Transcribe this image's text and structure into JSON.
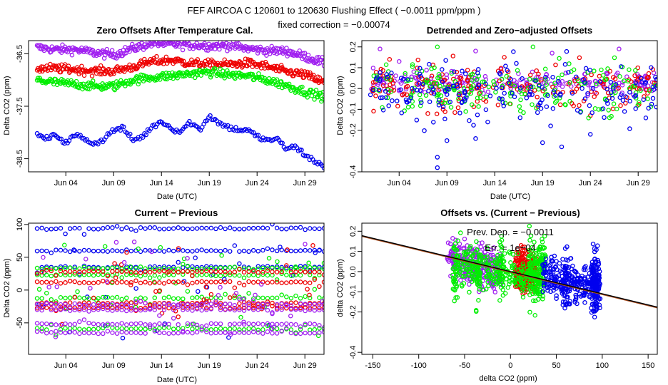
{
  "figure": {
    "title": "FEF   AIRCOA C   120601 to 120630   Flushing Effect ( −0.0011 ppm/ppm )",
    "subtitle": "fixed correction = −0.00074"
  },
  "colors": {
    "blue": "#0000ee",
    "green": "#00ee00",
    "red": "#ee0000",
    "purple": "#a020f0",
    "fit": "#000000",
    "fit_under": "#b05020"
  },
  "chart_data": [
    {
      "id": "zero-offsets",
      "type": "scatter",
      "title": "Zero Offsets After Temperature Cal.",
      "xlabel": "Date (UTC)",
      "ylabel": "Delta CO2 (ppm)",
      "xlim": [
        0.1,
        31.0
      ],
      "ylim": [
        -38.75,
        -36.25
      ],
      "xticks": [
        4,
        9,
        14,
        19,
        24,
        29
      ],
      "xtick_labels": [
        "Jun 04",
        "Jun 09",
        "Jun 14",
        "Jun 19",
        "Jun 24",
        "Jun 29"
      ],
      "yticks": [
        -36.5,
        -37.5,
        -38.5
      ],
      "ytick_labels": [
        "-36.5",
        "-37.5",
        "-38.5"
      ],
      "series": [
        {
          "name": "purple",
          "color": "purple",
          "x": [
            1,
            3,
            5,
            7,
            9,
            11,
            13,
            15,
            17,
            19,
            21,
            23,
            25,
            27,
            29,
            31
          ],
          "y": [
            -36.38,
            -36.42,
            -36.42,
            -36.48,
            -36.52,
            -36.4,
            -36.3,
            -36.32,
            -36.33,
            -36.35,
            -36.34,
            -36.4,
            -36.44,
            -36.45,
            -36.55,
            -36.68
          ]
        },
        {
          "name": "red",
          "color": "red",
          "x": [
            1,
            3,
            5,
            7,
            9,
            11,
            13,
            15,
            17,
            19,
            21,
            23,
            25,
            27,
            29,
            31
          ],
          "y": [
            -36.78,
            -36.78,
            -36.8,
            -36.83,
            -36.83,
            -36.75,
            -36.65,
            -36.62,
            -36.68,
            -36.7,
            -36.7,
            -36.68,
            -36.74,
            -36.84,
            -36.9,
            -37.05
          ]
        },
        {
          "name": "green",
          "color": "green",
          "x": [
            1,
            3,
            5,
            7,
            9,
            11,
            13,
            15,
            17,
            19,
            21,
            23,
            25,
            27,
            29,
            31
          ],
          "y": [
            -37.0,
            -37.05,
            -37.08,
            -37.12,
            -37.12,
            -37.0,
            -36.95,
            -36.92,
            -36.88,
            -36.85,
            -36.9,
            -36.92,
            -37.0,
            -37.1,
            -37.22,
            -37.32
          ]
        },
        {
          "name": "blue",
          "color": "blue",
          "x": [
            1,
            2,
            3,
            4,
            5,
            6,
            7,
            8,
            9,
            10,
            11,
            12,
            13,
            14,
            15,
            16,
            17,
            18,
            19,
            20,
            21,
            22,
            23,
            24,
            25,
            26,
            27,
            28,
            29,
            30,
            31
          ],
          "y": [
            -38.05,
            -38.12,
            -38.05,
            -38.2,
            -38.05,
            -38.12,
            -38.22,
            -38.12,
            -37.95,
            -37.92,
            -38.15,
            -38.08,
            -37.9,
            -37.78,
            -37.92,
            -37.98,
            -37.8,
            -37.95,
            -37.68,
            -37.82,
            -37.9,
            -37.95,
            -37.95,
            -38.08,
            -38.15,
            -38.12,
            -38.3,
            -38.28,
            -38.42,
            -38.55,
            -38.65
          ]
        }
      ]
    },
    {
      "id": "detrended",
      "type": "scatter",
      "title": "Detrended and Zero−adjusted Offsets",
      "xlabel": "Date (UTC)",
      "ylabel": "Delta CO2 (ppm)",
      "xlim": [
        0.1,
        31.0
      ],
      "ylim": [
        -0.4,
        0.23
      ],
      "xticks": [
        4,
        9,
        14,
        19,
        24,
        29
      ],
      "xtick_labels": [
        "Jun 04",
        "Jun 09",
        "Jun 14",
        "Jun 19",
        "Jun 24",
        "Jun 29"
      ],
      "yticks": [
        0.2,
        0.1,
        0.0,
        -0.1,
        -0.2,
        -0.4
      ],
      "ytick_labels": [
        "0.2",
        "0.1",
        "0.0",
        "-0.1",
        "-0.2",
        "-0.4"
      ],
      "series": [
        {
          "name": "purple",
          "color": "purple",
          "center": 0.03,
          "spread": 0.03,
          "outliers_x": [
            2,
            4,
            12,
            20,
            27
          ],
          "outliers_y": [
            0.19,
            0.13,
            0.18,
            0.17,
            0.19
          ]
        },
        {
          "name": "red",
          "color": "red",
          "center": 0.01,
          "spread": 0.05,
          "outliers_x": [
            3,
            7,
            15,
            24
          ],
          "outliers_y": [
            0.14,
            -0.12,
            0.15,
            -0.13
          ]
        },
        {
          "name": "green",
          "color": "green",
          "center": 0.0,
          "spread": 0.06,
          "outliers_x": [
            8,
            18,
            26
          ],
          "outliers_y": [
            0.2,
            0.2,
            -0.14
          ]
        },
        {
          "name": "blue",
          "color": "blue",
          "center": -0.02,
          "spread": 0.07,
          "outliers_x": [
            8,
            8,
            9,
            12,
            19,
            21,
            24
          ],
          "outliers_y": [
            -0.33,
            -0.38,
            -0.25,
            -0.24,
            -0.26,
            -0.28,
            -0.22
          ]
        }
      ]
    },
    {
      "id": "current-previous",
      "type": "scatter",
      "title": "Current − Previous",
      "xlabel": "Date (UTC)",
      "ylabel": "Delta CO2 (ppm)",
      "xlim": [
        0.1,
        31.0
      ],
      "ylim": [
        -98,
        102
      ],
      "xticks": [
        4,
        9,
        14,
        19,
        24,
        29
      ],
      "xtick_labels": [
        "Jun 04",
        "Jun 09",
        "Jun 14",
        "Jun 19",
        "Jun 24",
        "Jun 29"
      ],
      "yticks": [
        100,
        50,
        0,
        -50
      ],
      "ytick_labels": [
        "100",
        "50",
        "0",
        "-50"
      ],
      "series": [
        {
          "name": "blue",
          "color": "blue",
          "levels": [
            94,
            60,
            35
          ]
        },
        {
          "name": "green",
          "color": "green",
          "levels": [
            33,
            23,
            -12,
            -59
          ]
        },
        {
          "name": "red",
          "color": "red",
          "levels": [
            28,
            12,
            -20,
            -27
          ]
        },
        {
          "name": "purple",
          "color": "purple",
          "levels": [
            -22,
            -30,
            -52,
            -65
          ]
        }
      ]
    },
    {
      "id": "offsets-vs-diff",
      "type": "scatter",
      "title": "Offsets vs. (Current − Previous)",
      "xlabel": "delta CO2 (ppm)",
      "ylabel": "delta CO2 (ppm)",
      "xlim": [
        -162,
        160
      ],
      "ylim": [
        -0.41,
        0.24
      ],
      "xticks": [
        -150,
        -100,
        -50,
        0,
        50,
        100,
        150
      ],
      "xtick_labels": [
        "-150",
        "-100",
        "-50",
        "0",
        "50",
        "100",
        "150"
      ],
      "yticks": [
        0.2,
        0.1,
        0.0,
        -0.1,
        -0.2,
        -0.4
      ],
      "ytick_labels": [
        "0.2",
        "0.1",
        "0.0",
        "-0.1",
        "-0.2",
        "-0.4"
      ],
      "fit": {
        "slope": -0.0011,
        "intercept": 0.0
      },
      "annotations": [
        "Prev. Dep. =  −0.0011",
        "Err. =  1e−04"
      ],
      "series": [
        {
          "name": "purple",
          "color": "purple",
          "x_range": [
            -70,
            -10
          ],
          "y_center": 0.04
        },
        {
          "name": "red",
          "color": "red",
          "x_range": [
            5,
            30
          ],
          "y_center": 0.0
        },
        {
          "name": "green",
          "color": "green",
          "x_range": [
            -60,
            35
          ],
          "y_center": 0.0,
          "columns": [
            -60,
            -35,
            -10,
            22,
            27,
            33,
            36
          ]
        },
        {
          "name": "blue",
          "color": "blue",
          "x_range": [
            35,
            98
          ],
          "y_center": -0.05,
          "columns": [
            60,
            90,
            93,
            95
          ]
        }
      ]
    }
  ]
}
